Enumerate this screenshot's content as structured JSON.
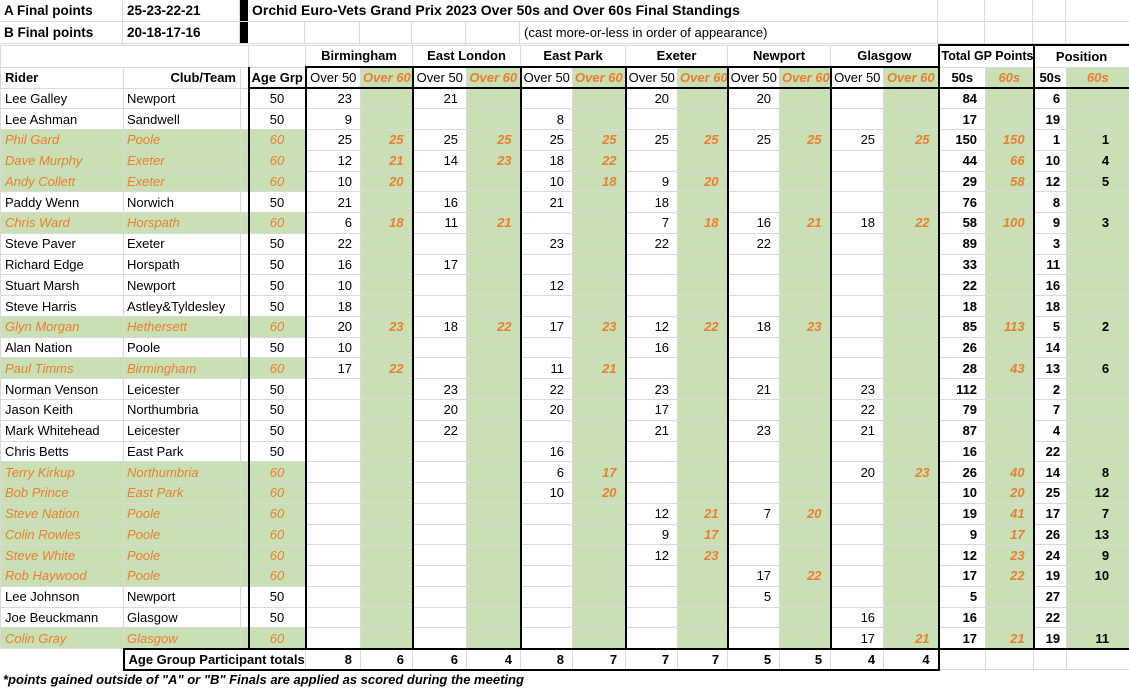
{
  "header": {
    "a_final": {
      "label": "A Final points",
      "points": "25-23-22-21"
    },
    "b_final": {
      "label": "B Final points",
      "points": "20-18-17-16"
    },
    "title": "Orchid Euro-Vets Grand Prix 2023 Over 50s and Over 60s Final Standings",
    "subtitle": "(cast more-or-less in order of appearance)"
  },
  "table": {
    "rider_header": "Rider",
    "club_header": "Club/Team",
    "age_header": "Age Grp",
    "venues": [
      "Birmingham",
      "East London",
      "East Park",
      "Exeter",
      "Newport",
      "Glasgow"
    ],
    "sub50": "Over 50",
    "sub60": "Over 60",
    "total_header": "Total GP Points",
    "position_header": "Position",
    "col50": "50s",
    "col60": "60s",
    "riders": [
      {
        "name": "Lee Galley",
        "club": "Newport",
        "age": "50",
        "pts": [
          "23",
          "",
          "21",
          "",
          "",
          "",
          "20",
          "",
          "20",
          "",
          "",
          ""
        ],
        "t50": "84",
        "t60": "",
        "p50": "6",
        "p60": ""
      },
      {
        "name": "Lee Ashman",
        "club": "Sandwell",
        "age": "50",
        "pts": [
          "9",
          "",
          "",
          "",
          "8",
          "",
          "",
          "",
          "",
          "",
          "",
          ""
        ],
        "t50": "17",
        "t60": "",
        "p50": "19",
        "p60": ""
      },
      {
        "name": "Phil Gard",
        "club": "Poole",
        "age": "60",
        "pts": [
          "25",
          "25",
          "25",
          "25",
          "25",
          "25",
          "25",
          "25",
          "25",
          "25",
          "25",
          "25"
        ],
        "t50": "150",
        "t60": "150",
        "p50": "1",
        "p60": "1"
      },
      {
        "name": "Dave Murphy",
        "club": "Exeter",
        "age": "60",
        "pts": [
          "12",
          "21",
          "14",
          "23",
          "18",
          "22",
          "",
          "",
          "",
          "",
          "",
          ""
        ],
        "t50": "44",
        "t60": "66",
        "p50": "10",
        "p60": "4"
      },
      {
        "name": "Andy Collett",
        "club": "Exeter",
        "age": "60",
        "pts": [
          "10",
          "20",
          "",
          "",
          "10",
          "18",
          "9",
          "20",
          "",
          "",
          "",
          ""
        ],
        "t50": "29",
        "t60": "58",
        "p50": "12",
        "p60": "5"
      },
      {
        "name": "Paddy Wenn",
        "club": "Norwich",
        "age": "50",
        "pts": [
          "21",
          "",
          "16",
          "",
          "21",
          "",
          "18",
          "",
          "",
          "",
          "",
          ""
        ],
        "t50": "76",
        "t60": "",
        "p50": "8",
        "p60": ""
      },
      {
        "name": "Chris Ward",
        "club": "Horspath",
        "age": "60",
        "pts": [
          "6",
          "18",
          "11",
          "21",
          "",
          "",
          "7",
          "18",
          "16",
          "21",
          "18",
          "22"
        ],
        "t50": "58",
        "t60": "100",
        "p50": "9",
        "p60": "3"
      },
      {
        "name": "Steve Paver",
        "club": "Exeter",
        "age": "50",
        "pts": [
          "22",
          "",
          "",
          "",
          "23",
          "",
          "22",
          "",
          "22",
          "",
          "",
          ""
        ],
        "t50": "89",
        "t60": "",
        "p50": "3",
        "p60": ""
      },
      {
        "name": "Richard Edge",
        "club": "Horspath",
        "age": "50",
        "pts": [
          "16",
          "",
          "17",
          "",
          "",
          "",
          "",
          "",
          "",
          "",
          "",
          ""
        ],
        "t50": "33",
        "t60": "",
        "p50": "11",
        "p60": ""
      },
      {
        "name": "Stuart Marsh",
        "club": "Newport",
        "age": "50",
        "pts": [
          "10",
          "",
          "",
          "",
          "12",
          "",
          "",
          "",
          "",
          "",
          "",
          ""
        ],
        "t50": "22",
        "t60": "",
        "p50": "16",
        "p60": ""
      },
      {
        "name": "Steve Harris",
        "club": "Astley&Tyldesley",
        "age": "50",
        "pts": [
          "18",
          "",
          "",
          "",
          "",
          "",
          "",
          "",
          "",
          "",
          "",
          ""
        ],
        "t50": "18",
        "t60": "",
        "p50": "18",
        "p60": ""
      },
      {
        "name": "Glyn Morgan",
        "club": "Hethersett",
        "age": "60",
        "pts": [
          "20",
          "23",
          "18",
          "22",
          "17",
          "23",
          "12",
          "22",
          "18",
          "23",
          "",
          ""
        ],
        "t50": "85",
        "t60": "113",
        "p50": "5",
        "p60": "2"
      },
      {
        "name": "Alan Nation",
        "club": "Poole",
        "age": "50",
        "pts": [
          "10",
          "",
          "",
          "",
          "",
          "",
          "16",
          "",
          "",
          "",
          "",
          ""
        ],
        "t50": "26",
        "t60": "",
        "p50": "14",
        "p60": ""
      },
      {
        "name": "Paul Timms",
        "club": "Birmingham",
        "age": "60",
        "pts": [
          "17",
          "22",
          "",
          "",
          "11",
          "21",
          "",
          "",
          "",
          "",
          "",
          ""
        ],
        "t50": "28",
        "t60": "43",
        "p50": "13",
        "p60": "6"
      },
      {
        "name": "Norman Venson",
        "club": "Leicester",
        "age": "50",
        "pts": [
          "",
          "",
          "23",
          "",
          "22",
          "",
          "23",
          "",
          "21",
          "",
          "23",
          ""
        ],
        "t50": "112",
        "t60": "",
        "p50": "2",
        "p60": ""
      },
      {
        "name": "Jason Keith",
        "club": "Northumbria",
        "age": "50",
        "pts": [
          "",
          "",
          "20",
          "",
          "20",
          "",
          "17",
          "",
          "",
          "",
          "22",
          ""
        ],
        "t50": "79",
        "t60": "",
        "p50": "7",
        "p60": ""
      },
      {
        "name": "Mark Whitehead",
        "club": "Leicester",
        "age": "50",
        "pts": [
          "",
          "",
          "22",
          "",
          "",
          "",
          "21",
          "",
          "23",
          "",
          "21",
          ""
        ],
        "t50": "87",
        "t60": "",
        "p50": "4",
        "p60": ""
      },
      {
        "name": "Chris Betts",
        "club": "East Park",
        "age": "50",
        "pts": [
          "",
          "",
          "",
          "",
          "16",
          "",
          "",
          "",
          "",
          "",
          "",
          ""
        ],
        "t50": "16",
        "t60": "",
        "p50": "22",
        "p60": ""
      },
      {
        "name": "Terry Kirkup",
        "club": "Northumbria",
        "age": "60",
        "pts": [
          "",
          "",
          "",
          "",
          "6",
          "17",
          "",
          "",
          "",
          "",
          "20",
          "23"
        ],
        "t50": "26",
        "t60": "40",
        "p50": "14",
        "p60": "8"
      },
      {
        "name": "Bob Prince",
        "club": "East Park",
        "age": "60",
        "pts": [
          "",
          "",
          "",
          "",
          "10",
          "20",
          "",
          "",
          "",
          "",
          "",
          ""
        ],
        "t50": "10",
        "t60": "20",
        "p50": "25",
        "p60": "12"
      },
      {
        "name": "Steve Nation",
        "club": "Poole",
        "age": "60",
        "pts": [
          "",
          "",
          "",
          "",
          "",
          "",
          "12",
          "21",
          "7",
          "20",
          "",
          ""
        ],
        "t50": "19",
        "t60": "41",
        "p50": "17",
        "p60": "7"
      },
      {
        "name": "Colin Rowles",
        "club": "Poole",
        "age": "60",
        "pts": [
          "",
          "",
          "",
          "",
          "",
          "",
          "9",
          "17",
          "",
          "",
          "",
          ""
        ],
        "t50": "9",
        "t60": "17",
        "p50": "26",
        "p60": "13"
      },
      {
        "name": "Steve White",
        "club": "Poole",
        "age": "60",
        "pts": [
          "",
          "",
          "",
          "",
          "",
          "",
          "12",
          "23",
          "",
          "",
          "",
          ""
        ],
        "t50": "12",
        "t60": "23",
        "p50": "24",
        "p60": "9"
      },
      {
        "name": "Rob Haywood",
        "club": "Poole",
        "age": "60",
        "pts": [
          "",
          "",
          "",
          "",
          "",
          "",
          "",
          "",
          "17",
          "22",
          "",
          ""
        ],
        "t50": "17",
        "t60": "22",
        "p50": "19",
        "p60": "10"
      },
      {
        "name": "Lee Johnson",
        "club": "Newport",
        "age": "50",
        "pts": [
          "",
          "",
          "",
          "",
          "",
          "",
          "",
          "",
          "5",
          "",
          "",
          ""
        ],
        "t50": "5",
        "t60": "",
        "p50": "27",
        "p60": ""
      },
      {
        "name": "Joe Beuckmann",
        "club": "Glasgow",
        "age": "50",
        "pts": [
          "",
          "",
          "",
          "",
          "",
          "",
          "",
          "",
          "",
          "",
          "16",
          ""
        ],
        "t50": "16",
        "t60": "",
        "p50": "22",
        "p60": ""
      },
      {
        "name": "Colin Gray",
        "club": "Glasgow",
        "age": "60",
        "pts": [
          "",
          "",
          "",
          "",
          "",
          "",
          "",
          "",
          "",
          "",
          "17",
          "21"
        ],
        "t50": "17",
        "t60": "21",
        "p50": "19",
        "p60": "11"
      }
    ],
    "totals_label": "Age Group Participant totals",
    "totals": [
      "8",
      "6",
      "6",
      "4",
      "8",
      "7",
      "7",
      "7",
      "5",
      "5",
      "4",
      "4"
    ]
  },
  "footnote": "*points gained outside of \"A\" or \"B\" Finals are applied as scored during the meeting",
  "colors": {
    "green": "#c8e0b4",
    "orange": "#ed7d31"
  }
}
